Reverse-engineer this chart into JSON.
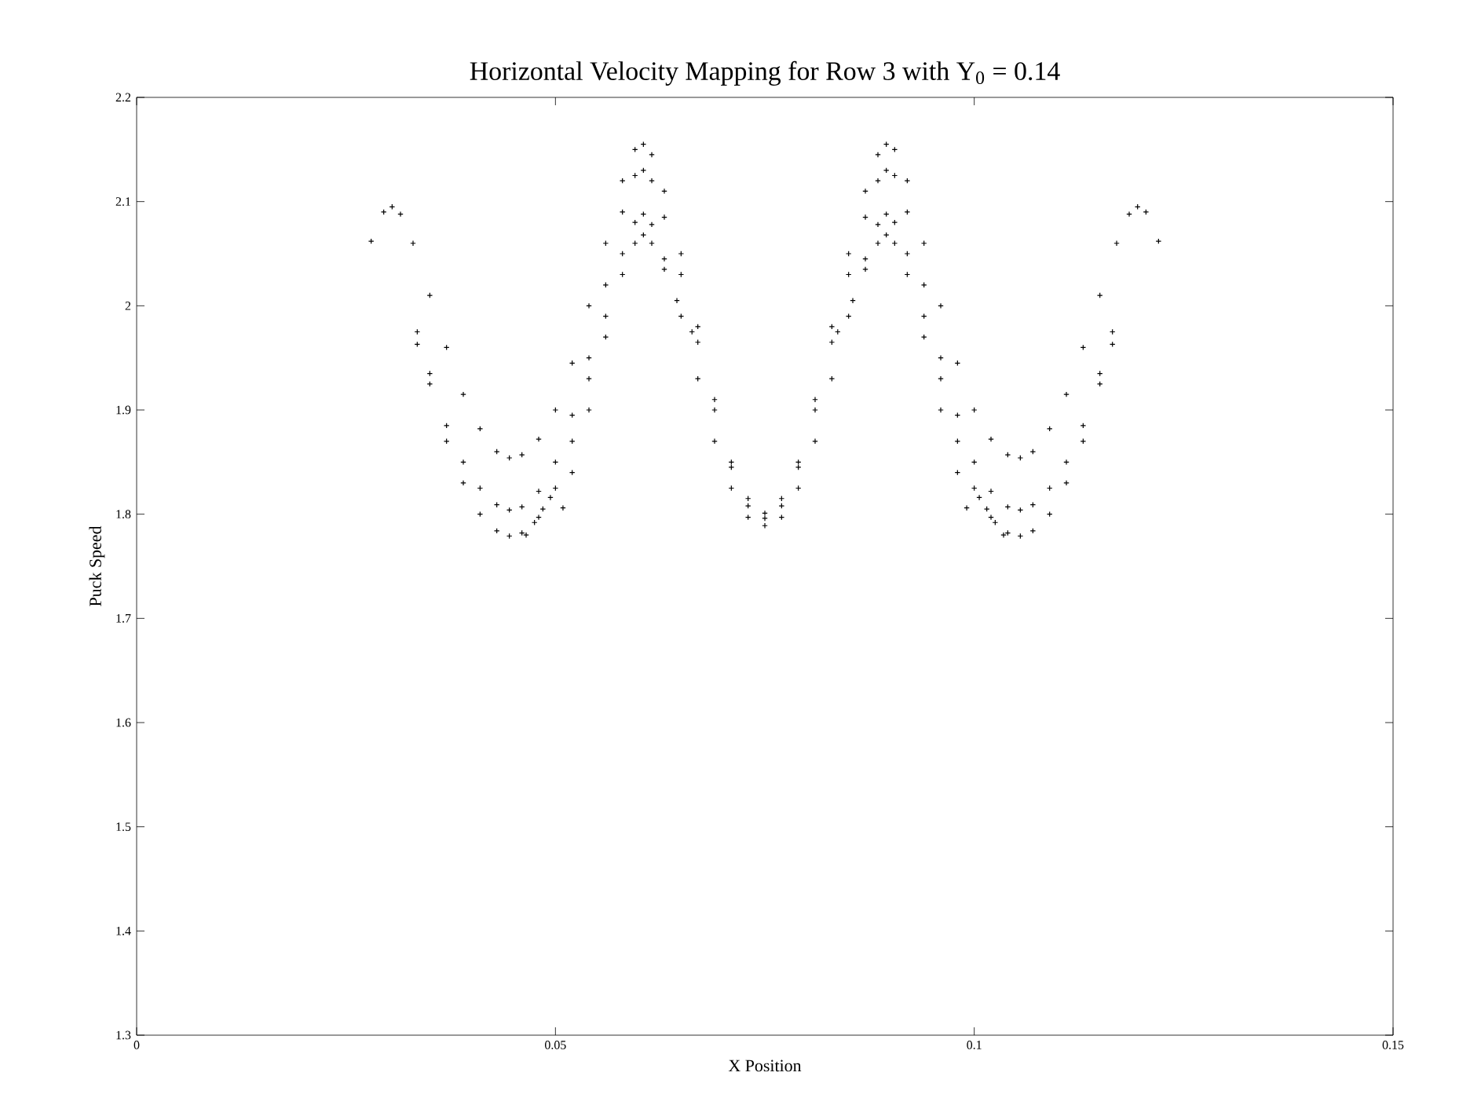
{
  "chart_data": {
    "type": "scatter",
    "title": "Horizontal Velocity Mapping for Row 3 with Y$_{0}$ = 0.14",
    "xlabel": "X Position",
    "ylabel": "Puck Speed",
    "xlim": [
      0,
      0.15
    ],
    "ylim": [
      1.3,
      2.2
    ],
    "xticks": [
      0,
      0.05,
      0.1,
      0.15
    ],
    "yticks": [
      1.3,
      1.4,
      1.5,
      1.6,
      1.7,
      1.8,
      1.9,
      2,
      2.1,
      2.2
    ],
    "marker": "cross",
    "grid": false,
    "series": [
      {
        "color": "#000000",
        "x": [
          0.028,
          0.0295,
          0.0305,
          0.0315,
          0.033,
          0.035,
          0.037,
          0.039,
          0.041,
          0.043,
          0.0445,
          0.046,
          0.048,
          0.05,
          0.052,
          0.054,
          0.056,
          0.058,
          0.0595,
          0.0605,
          0.0615,
          0.063,
          0.065,
          0.067,
          0.069,
          0.071,
          0.073,
          0.075,
          0.077,
          0.079,
          0.081,
          0.083,
          0.085,
          0.087,
          0.0885,
          0.0895,
          0.0905,
          0.092,
          0.094,
          0.096,
          0.098,
          0.1,
          0.102,
          0.104,
          0.1055,
          0.107,
          0.109,
          0.111,
          0.113,
          0.115,
          0.117,
          0.1185,
          0.1195,
          0.1205,
          0.122
        ],
        "values": [
          2.062,
          2.09,
          2.095,
          2.088,
          2.06,
          2.01,
          1.96,
          1.915,
          1.882,
          1.86,
          1.854,
          1.857,
          1.872,
          1.9,
          1.945,
          2.0,
          2.06,
          2.12,
          2.15,
          2.155,
          2.145,
          2.11,
          2.05,
          1.98,
          1.91,
          1.85,
          1.815,
          1.801,
          1.815,
          1.85,
          1.91,
          1.98,
          2.05,
          2.11,
          2.145,
          2.155,
          2.15,
          2.12,
          2.06,
          2.0,
          1.945,
          1.9,
          1.872,
          1.857,
          1.854,
          1.86,
          1.882,
          1.915,
          1.96,
          2.01,
          2.06,
          2.088,
          2.095,
          2.09,
          2.062
        ]
      },
      {
        "color": "#000000",
        "x": [
          0.0335,
          0.035,
          0.037,
          0.039,
          0.041,
          0.043,
          0.0445,
          0.046,
          0.048,
          0.05,
          0.052,
          0.054,
          0.056,
          0.058,
          0.0595,
          0.0605,
          0.0615,
          0.063,
          0.065,
          0.067,
          0.069,
          0.071,
          0.073,
          0.075,
          0.077,
          0.079,
          0.081,
          0.083,
          0.085,
          0.087,
          0.0885,
          0.0895,
          0.0905,
          0.092,
          0.094,
          0.096,
          0.098,
          0.1,
          0.102,
          0.104,
          0.1055,
          0.107,
          0.109,
          0.111,
          0.113,
          0.115,
          0.1165
        ],
        "values": [
          1.975,
          1.935,
          1.885,
          1.85,
          1.825,
          1.809,
          1.804,
          1.807,
          1.822,
          1.85,
          1.895,
          1.95,
          2.02,
          2.09,
          2.125,
          2.13,
          2.12,
          2.085,
          2.03,
          1.965,
          1.9,
          1.845,
          1.808,
          1.796,
          1.808,
          1.845,
          1.9,
          1.965,
          2.03,
          2.085,
          2.12,
          2.13,
          2.125,
          2.09,
          2.02,
          1.95,
          1.895,
          1.85,
          1.822,
          1.807,
          1.804,
          1.809,
          1.825,
          1.85,
          1.885,
          1.935,
          1.975
        ]
      },
      {
        "color": "#000000",
        "x": [
          0.0335,
          0.035,
          0.037,
          0.039,
          0.041,
          0.043,
          0.0445,
          0.046,
          0.048,
          0.05,
          0.052,
          0.054,
          0.056,
          0.058,
          0.0595,
          0.0605,
          0.0615,
          0.063,
          0.065,
          0.067,
          0.069,
          0.071,
          0.073,
          0.075,
          0.077,
          0.079,
          0.081,
          0.083,
          0.085,
          0.087,
          0.0885,
          0.0895,
          0.0905,
          0.092,
          0.094,
          0.096,
          0.098,
          0.1,
          0.102,
          0.104,
          0.1055,
          0.107,
          0.109,
          0.111,
          0.113,
          0.115,
          0.1165
        ],
        "values": [
          1.963,
          1.925,
          1.87,
          1.83,
          1.8,
          1.784,
          1.779,
          1.782,
          1.797,
          1.825,
          1.87,
          1.93,
          1.99,
          2.05,
          2.08,
          2.088,
          2.078,
          2.045,
          1.99,
          1.93,
          1.87,
          1.825,
          1.797,
          1.789,
          1.797,
          1.825,
          1.87,
          1.93,
          1.99,
          2.045,
          2.078,
          2.088,
          2.08,
          2.05,
          1.99,
          1.93,
          1.87,
          1.825,
          1.797,
          1.782,
          1.779,
          1.784,
          1.8,
          1.83,
          1.87,
          1.925,
          1.963
        ]
      },
      {
        "color": "#000000",
        "x": [
          0.0465,
          0.0475,
          0.0485,
          0.0494,
          0.0509,
          0.052,
          0.054,
          0.056,
          0.058,
          0.0595,
          0.0605,
          0.0615,
          0.063,
          0.0645,
          0.0663,
          0.0837,
          0.0855,
          0.087,
          0.0885,
          0.0895,
          0.0905,
          0.092,
          0.094,
          0.096,
          0.098,
          0.0991,
          0.1006,
          0.1015,
          0.1025,
          0.1035
        ],
        "values": [
          1.78,
          1.792,
          1.805,
          1.816,
          1.806,
          1.84,
          1.9,
          1.97,
          2.03,
          2.06,
          2.068,
          2.06,
          2.035,
          2.005,
          1.975,
          1.975,
          2.005,
          2.035,
          2.06,
          2.068,
          2.06,
          2.03,
          1.97,
          1.9,
          1.84,
          1.806,
          1.816,
          1.805,
          1.792,
          1.78
        ]
      }
    ]
  }
}
